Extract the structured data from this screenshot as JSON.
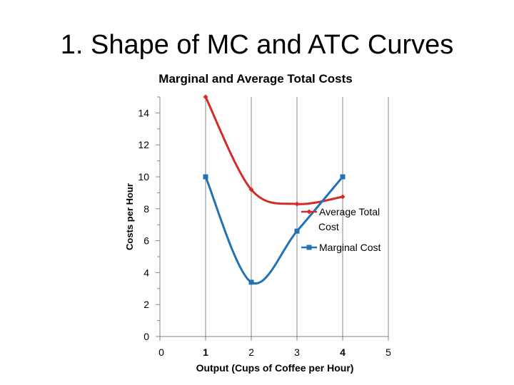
{
  "slide": {
    "title": "1. Shape of MC and ATC Curves"
  },
  "chart_data": {
    "type": "line",
    "title": "Marginal and Average Total Costs",
    "xlabel": "Output (Cups of Coffee per Hour)",
    "ylabel": "Costs per Hour",
    "xlim": [
      0,
      5
    ],
    "ylim": [
      0,
      15
    ],
    "x_ticks": [
      "0",
      "1",
      "2",
      "3",
      "4",
      "5"
    ],
    "x_ticks_bold": [
      false,
      true,
      false,
      false,
      true,
      false
    ],
    "y_ticks": [
      "0",
      "2",
      "4",
      "6",
      "8",
      "10",
      "12",
      "14"
    ],
    "grid": "vertical",
    "legend_position": "right",
    "series": [
      {
        "name": "Average Total Cost",
        "legend_lines": [
          "Average Total",
          "Cost"
        ],
        "marker": "diamond",
        "color": "#d42a2a",
        "x": [
          1,
          2,
          3,
          4
        ],
        "y": [
          15,
          9.2,
          8.3,
          8.75
        ]
      },
      {
        "name": "Marginal Cost",
        "legend_lines": [
          "Marginal Cost"
        ],
        "marker": "square",
        "color": "#2272b5",
        "x": [
          1,
          2,
          3,
          4
        ],
        "y": [
          10,
          3.4,
          6.6,
          10
        ]
      }
    ]
  }
}
